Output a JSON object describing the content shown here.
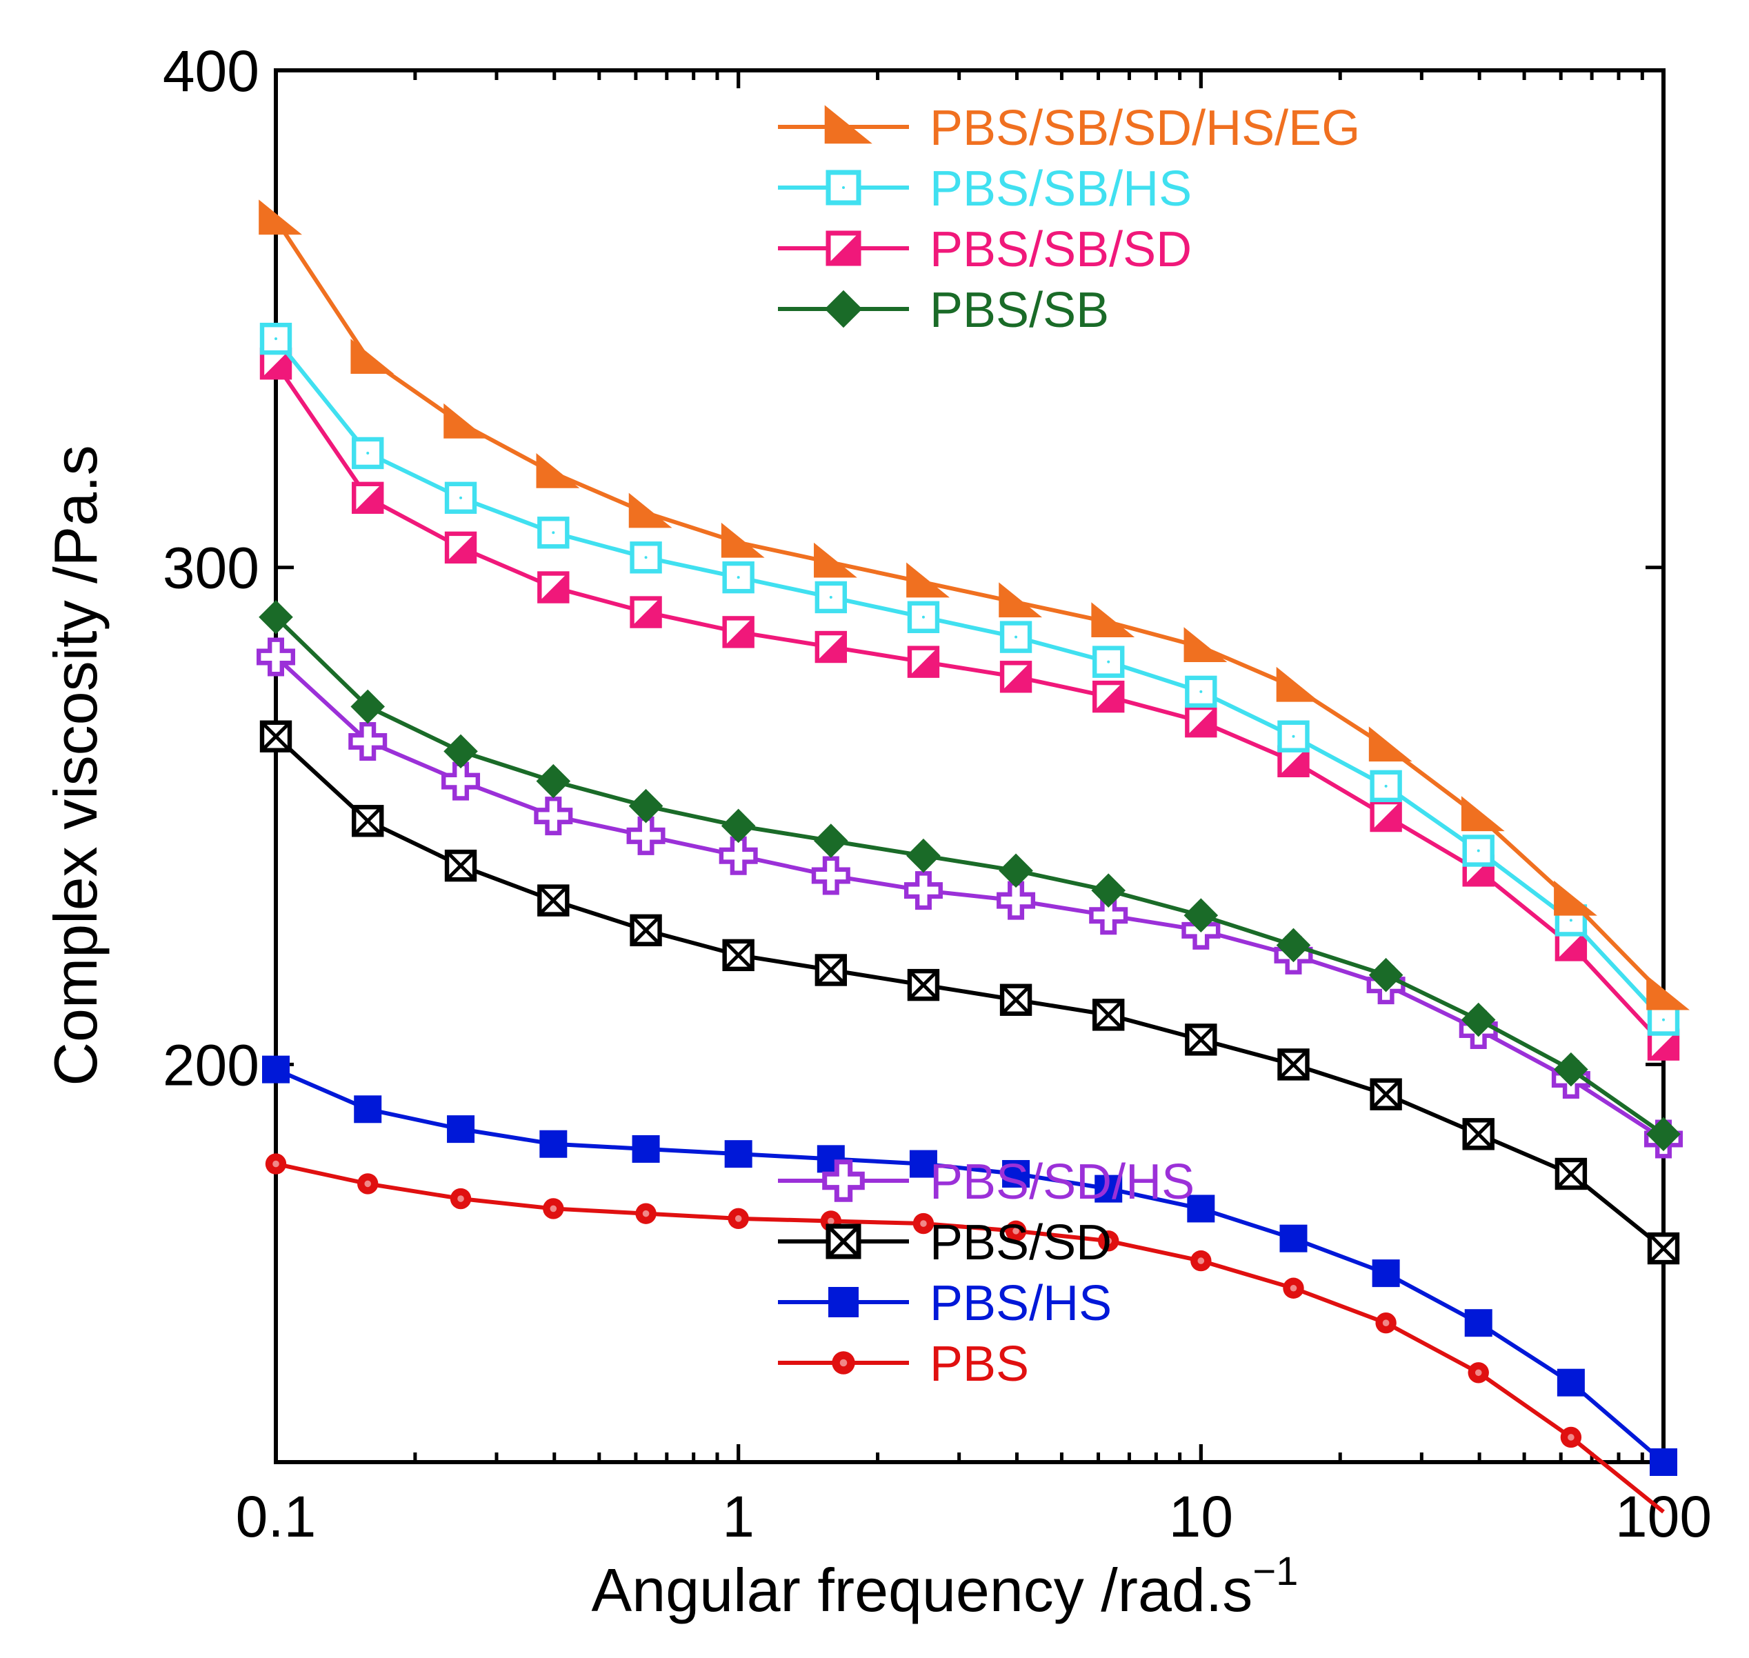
{
  "chart_data": {
    "type": "line",
    "title": "",
    "xlabel": "Angular frequency /rad.s",
    "xlabel_sup": "−1",
    "ylabel": "Complex viscosity /Pa.s",
    "xscale": "log",
    "xlim": [
      0.1,
      100
    ],
    "ylim": [
      120,
      400
    ],
    "x_ticks": [
      0.1,
      1,
      10,
      100
    ],
    "x_tick_labels": [
      "0.1",
      "1",
      "10",
      "100"
    ],
    "y_ticks": [
      200,
      300,
      400
    ],
    "y_tick_labels": [
      "200",
      "300",
      "400"
    ],
    "x": [
      0.1,
      0.158,
      0.251,
      0.398,
      0.631,
      1,
      1.585,
      2.512,
      3.981,
      6.31,
      10,
      15.85,
      25.12,
      39.81,
      63.1,
      100
    ],
    "legend_upper": [
      "PBS/SB/SD/HS/EG",
      "PBS/SB/HS",
      "PBS/SB/SD",
      "PBS/SB"
    ],
    "legend_lower": [
      "PBS/SD/HS",
      "PBS/SD",
      "PBS/HS",
      "PBS"
    ],
    "series": [
      {
        "name": "PBS/SB/SD/HS/EG",
        "color": "#f07020",
        "marker": "triangle",
        "values": [
          370,
          342,
          329,
          319,
          311,
          305,
          301,
          297,
          293,
          289,
          284,
          276,
          264,
          250,
          233,
          214
        ]
      },
      {
        "name": "PBS/SB/HS",
        "color": "#40e0f0",
        "marker": "open-square",
        "values": [
          346,
          323,
          314,
          307,
          302,
          298,
          294,
          290,
          286,
          281,
          275,
          266,
          256,
          243,
          229,
          209
        ]
      },
      {
        "name": "PBS/SB/SD",
        "color": "#f0187a",
        "marker": "half-square",
        "values": [
          341,
          314,
          304,
          296,
          291,
          287,
          284,
          281,
          278,
          274,
          269,
          261,
          250,
          239,
          224,
          204
        ]
      },
      {
        "name": "PBS/SB",
        "color": "#1a6b28",
        "marker": "diamond",
        "values": [
          290,
          272,
          263,
          257,
          252,
          248,
          245,
          242,
          239,
          235,
          230,
          224,
          218,
          209,
          199,
          186
        ]
      },
      {
        "name": "PBS/SD/HS",
        "color": "#9b30d8",
        "marker": "open-cross",
        "values": [
          282,
          265,
          257,
          250,
          246,
          242,
          238,
          235,
          233,
          230,
          227,
          222,
          216,
          207,
          197,
          185
        ]
      },
      {
        "name": "PBS/SD",
        "color": "#000000",
        "marker": "crossed-square",
        "values": [
          266,
          249,
          240,
          233,
          227,
          222,
          219,
          216,
          213,
          210,
          205,
          200,
          194,
          186,
          178,
          163
        ]
      },
      {
        "name": "PBS/HS",
        "color": "#0018d8",
        "marker": "filled-square",
        "values": [
          199,
          191,
          187,
          184,
          183,
          182,
          181,
          180,
          178,
          175,
          171,
          165,
          158,
          148,
          136,
          120
        ]
      },
      {
        "name": "PBS",
        "color": "#e01010",
        "marker": "circle",
        "values": [
          180,
          176,
          173,
          171,
          170,
          169,
          168.5,
          168,
          166.5,
          164.5,
          160.5,
          155,
          148,
          138,
          125,
          110
        ]
      }
    ]
  }
}
